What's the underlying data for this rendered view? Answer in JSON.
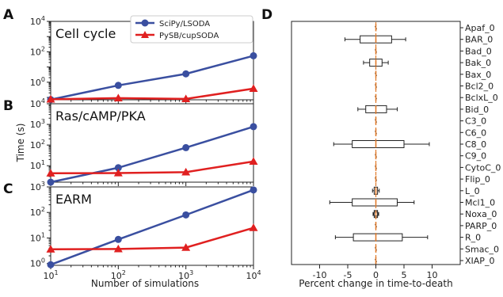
{
  "panels": {
    "A": "A",
    "B": "B",
    "C": "C",
    "D": "D"
  },
  "colors": {
    "scipy": "#3a4fa0",
    "pysb": "#e02020",
    "median": "#e07a2a"
  },
  "legend": {
    "placement": "top-right of panel A",
    "scipy": "SciPy/LSODA",
    "pysb": "PySB/cupSODA"
  },
  "chart_data": [
    {
      "type": "line",
      "subtitle": "Cell cycle",
      "xscale": "log",
      "yscale": "log",
      "xlim": [
        10,
        10000
      ],
      "ylim": [
        0.07,
        10000
      ],
      "ytick_labels": [
        "10^0",
        "10^2",
        "10^4"
      ],
      "x": [
        10,
        100,
        1000,
        10000
      ],
      "series": [
        {
          "name": "SciPy/LSODA",
          "values": [
            0.072,
            0.62,
            3.55,
            55
          ]
        },
        {
          "name": "PySB/cupSODA",
          "values": [
            0.075,
            0.09,
            0.08,
            0.38
          ]
        }
      ]
    },
    {
      "type": "line",
      "subtitle": "Ras/cAMP/PKA",
      "xscale": "log",
      "yscale": "log",
      "xlim": [
        10,
        10000
      ],
      "ylim": [
        1.6,
        10000
      ],
      "ytick_labels": [
        "10^1",
        "10^2",
        "10^3",
        "10^4"
      ],
      "x": [
        10,
        100,
        1000,
        10000
      ],
      "series": [
        {
          "name": "SciPy/LSODA",
          "values": [
            1.6,
            8,
            75,
            780
          ]
        },
        {
          "name": "PySB/cupSODA",
          "values": [
            4.3,
            4.4,
            4.9,
            16
          ]
        }
      ]
    },
    {
      "type": "line",
      "subtitle": "EARM",
      "xscale": "log",
      "yscale": "log",
      "xlim": [
        10,
        10000
      ],
      "ylim": [
        0.85,
        1000
      ],
      "ytick_labels": [
        "10^0",
        "10^1",
        "10^2",
        "10^3"
      ],
      "x": [
        10,
        100,
        1000,
        10000
      ],
      "series": [
        {
          "name": "SciPy/LSODA",
          "values": [
            0.9,
            8.8,
            80,
            760
          ]
        },
        {
          "name": "PySB/cupSODA",
          "values": [
            3.6,
            3.7,
            4.2,
            25
          ]
        }
      ]
    },
    {
      "type": "boxplot",
      "xlabel": "Percent change in time-to-death",
      "xlim": [
        -15,
        15
      ],
      "xtick_labels": [
        "-10",
        "-5",
        "0",
        "5",
        "10"
      ],
      "categories": [
        "Apaf_0",
        "BAR_0",
        "Bad_0",
        "Bak_0",
        "Bax_0",
        "Bcl2_0",
        "BclxL_0",
        "Bid_0",
        "C3_0",
        "C6_0",
        "C8_0",
        "C9_0",
        "CytoC_0",
        "Flip_0",
        "L_0",
        "Mcl1_0",
        "Noxa_0",
        "PARP_0",
        "R_0",
        "Smac_0",
        "XIAP_0"
      ],
      "boxes": [
        {
          "whislo": 0,
          "q1": 0,
          "med": 0,
          "q3": 0,
          "whishi": 0
        },
        {
          "whislo": -5.5,
          "q1": -2.8,
          "med": 0,
          "q3": 2.8,
          "whishi": 5.3
        },
        {
          "whislo": 0,
          "q1": 0,
          "med": 0,
          "q3": 0,
          "whishi": 0
        },
        {
          "whislo": -2.2,
          "q1": -1.1,
          "med": 0,
          "q3": 1.1,
          "whishi": 2.2
        },
        {
          "whislo": 0,
          "q1": 0,
          "med": 0,
          "q3": 0,
          "whishi": 0
        },
        {
          "whislo": 0,
          "q1": 0,
          "med": 0,
          "q3": 0,
          "whishi": 0
        },
        {
          "whislo": 0,
          "q1": 0,
          "med": 0,
          "q3": 0,
          "whishi": 0
        },
        {
          "whislo": -3.2,
          "q1": -1.8,
          "med": 0,
          "q3": 1.9,
          "whishi": 3.8
        },
        {
          "whislo": 0,
          "q1": 0,
          "med": 0,
          "q3": 0,
          "whishi": 0
        },
        {
          "whislo": 0,
          "q1": 0,
          "med": 0,
          "q3": 0,
          "whishi": 0
        },
        {
          "whislo": -7.5,
          "q1": -4.2,
          "med": 0,
          "q3": 5.0,
          "whishi": 9.5
        },
        {
          "whislo": 0,
          "q1": 0,
          "med": 0,
          "q3": 0,
          "whishi": 0
        },
        {
          "whislo": 0,
          "q1": 0,
          "med": 0,
          "q3": 0,
          "whishi": 0
        },
        {
          "whislo": 0,
          "q1": 0,
          "med": 0,
          "q3": 0,
          "whishi": 0
        },
        {
          "whislo": -0.6,
          "q1": -0.3,
          "med": 0,
          "q3": 0.3,
          "whishi": 0.6
        },
        {
          "whislo": -8.2,
          "q1": -4.2,
          "med": 0,
          "q3": 3.8,
          "whishi": 6.8
        },
        {
          "whislo": -0.5,
          "q1": -0.3,
          "med": 0,
          "q3": 0.3,
          "whishi": 0.5
        },
        {
          "whislo": 0,
          "q1": 0,
          "med": 0,
          "q3": 0,
          "whishi": 0
        },
        {
          "whislo": -7.2,
          "q1": -4.0,
          "med": 0,
          "q3": 4.7,
          "whishi": 9.2
        },
        {
          "whislo": 0,
          "q1": 0,
          "med": 0,
          "q3": 0,
          "whishi": 0
        },
        {
          "whislo": 0,
          "q1": 0,
          "med": 0,
          "q3": 0,
          "whishi": 0
        }
      ]
    }
  ],
  "shared_axes": {
    "ylabel": "Time (s)",
    "xlabel": "Number of simulations",
    "xtick_labels": [
      "10^1",
      "10^2",
      "10^3",
      "10^4"
    ]
  }
}
